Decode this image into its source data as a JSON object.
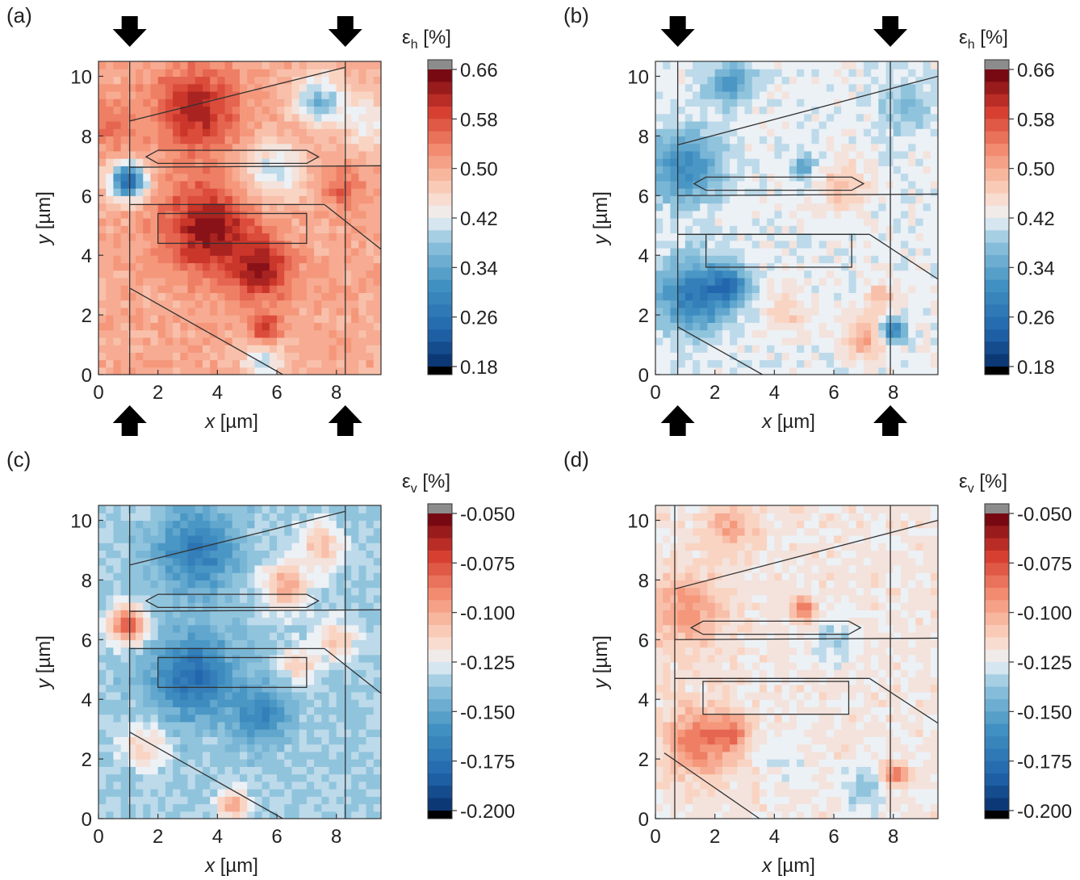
{
  "chart_data": [
    {
      "type": "heatmap",
      "panel_label": "(a)",
      "xlabel_var": "x",
      "xlabel_unit": "[µm]",
      "ylabel_var": "y",
      "ylabel_unit": "[µm]",
      "xlim": [
        0,
        9.5
      ],
      "ylim": [
        0,
        10.5
      ],
      "xticks": [
        "0",
        "2",
        "4",
        "6",
        "8"
      ],
      "yticks": [
        "0",
        "2",
        "4",
        "6",
        "8",
        "10"
      ],
      "colorbar_title_symbol": "ε",
      "colorbar_title_sub": "h",
      "colorbar_title_unit": "[%]",
      "colorbar_ticks": [
        "0.66",
        "0.58",
        "0.50",
        "0.42",
        "0.34",
        "0.26",
        "0.18"
      ],
      "colorbar_range": [
        0.18,
        0.66
      ],
      "arrows": true,
      "overall_mean": 0.5,
      "features": [
        {
          "x": 1.0,
          "y": 6.5,
          "value": 0.24,
          "radius": 0.6
        },
        {
          "x": 3.7,
          "y": 4.9,
          "value": 0.64,
          "radius": 1.5
        },
        {
          "x": 3.3,
          "y": 8.9,
          "value": 0.62,
          "radius": 1.4
        },
        {
          "x": 5.5,
          "y": 3.5,
          "value": 0.62,
          "radius": 1.0
        },
        {
          "x": 5.6,
          "y": 1.5,
          "value": 0.62,
          "radius": 0.5
        },
        {
          "x": 7.4,
          "y": 9.2,
          "value": 0.36,
          "radius": 0.8
        },
        {
          "x": 5.9,
          "y": 6.8,
          "value": 0.4,
          "radius": 1.0
        },
        {
          "x": 8.2,
          "y": 6.2,
          "value": 0.56,
          "radius": 0.7
        },
        {
          "x": 0.4,
          "y": 8.3,
          "value": 0.56,
          "radius": 0.8
        },
        {
          "x": 5.5,
          "y": 0.5,
          "value": 0.4,
          "radius": 0.7
        },
        {
          "x": 9.1,
          "y": 8.5,
          "value": 0.42,
          "radius": 0.9
        }
      ]
    },
    {
      "type": "heatmap",
      "panel_label": "(b)",
      "xlabel_var": "x",
      "xlabel_unit": "[µm]",
      "ylabel_var": "y",
      "ylabel_unit": "[µm]",
      "xlim": [
        0,
        9.5
      ],
      "ylim": [
        0,
        10.5
      ],
      "xticks": [
        "0",
        "2",
        "4",
        "6",
        "8"
      ],
      "yticks": [
        "0",
        "2",
        "4",
        "6",
        "8",
        "10"
      ],
      "colorbar_title_symbol": "ε",
      "colorbar_title_sub": "h",
      "colorbar_title_unit": "[%]",
      "colorbar_ticks": [
        "0.66",
        "0.58",
        "0.50",
        "0.42",
        "0.34",
        "0.26",
        "0.18"
      ],
      "colorbar_range": [
        0.18,
        0.66
      ],
      "arrows": true,
      "overall_mean": 0.42,
      "features": [
        {
          "x": 1.0,
          "y": 7.0,
          "value": 0.3,
          "radius": 1.2
        },
        {
          "x": 1.3,
          "y": 2.7,
          "value": 0.27,
          "radius": 1.2
        },
        {
          "x": 2.5,
          "y": 3.0,
          "value": 0.3,
          "radius": 0.6
        },
        {
          "x": 2.5,
          "y": 9.8,
          "value": 0.32,
          "radius": 0.7
        },
        {
          "x": 6.3,
          "y": 6.3,
          "value": 0.48,
          "radius": 0.8
        },
        {
          "x": 7.0,
          "y": 1.2,
          "value": 0.5,
          "radius": 0.7
        },
        {
          "x": 7.6,
          "y": 2.6,
          "value": 0.48,
          "radius": 0.5
        },
        {
          "x": 8.0,
          "y": 1.5,
          "value": 0.28,
          "radius": 0.4
        },
        {
          "x": 5.0,
          "y": 7.0,
          "value": 0.34,
          "radius": 0.4
        },
        {
          "x": 4.5,
          "y": 2.0,
          "value": 0.46,
          "radius": 0.8
        },
        {
          "x": 8.5,
          "y": 9.0,
          "value": 0.38,
          "radius": 1.0
        }
      ]
    },
    {
      "type": "heatmap",
      "panel_label": "(c)",
      "xlabel_var": "x",
      "xlabel_unit": "[µm]",
      "ylabel_var": "y",
      "ylabel_unit": "[µm]",
      "xlim": [
        0,
        9.5
      ],
      "ylim": [
        0,
        10.5
      ],
      "xticks": [
        "0",
        "2",
        "4",
        "6",
        "8"
      ],
      "yticks": [
        "0",
        "2",
        "4",
        "6",
        "8",
        "10"
      ],
      "colorbar_title_symbol": "ε",
      "colorbar_title_sub": "v",
      "colorbar_title_unit": "[%]",
      "colorbar_ticks": [
        "-0.050",
        "-0.075",
        "-0.100",
        "-0.125",
        "-0.150",
        "-0.175",
        "-0.200"
      ],
      "colorbar_range": [
        -0.2,
        -0.05
      ],
      "arrows": false,
      "overall_mean": -0.135,
      "features": [
        {
          "x": 1.0,
          "y": 6.5,
          "value": -0.075,
          "radius": 0.6
        },
        {
          "x": 3.2,
          "y": 4.8,
          "value": -0.175,
          "radius": 1.4
        },
        {
          "x": 3.3,
          "y": 9.0,
          "value": -0.17,
          "radius": 1.3
        },
        {
          "x": 5.5,
          "y": 3.5,
          "value": -0.165,
          "radius": 0.9
        },
        {
          "x": 6.3,
          "y": 7.8,
          "value": -0.1,
          "radius": 0.8
        },
        {
          "x": 7.5,
          "y": 9.2,
          "value": -0.105,
          "radius": 0.7
        },
        {
          "x": 8.0,
          "y": 6.0,
          "value": -0.105,
          "radius": 0.6
        },
        {
          "x": 4.5,
          "y": 0.5,
          "value": -0.1,
          "radius": 0.5
        },
        {
          "x": 1.5,
          "y": 2.5,
          "value": -0.11,
          "radius": 0.7
        },
        {
          "x": 6.8,
          "y": 5.2,
          "value": -0.11,
          "radius": 0.6
        }
      ]
    },
    {
      "type": "heatmap",
      "panel_label": "(d)",
      "xlabel_var": "x",
      "xlabel_unit": "[µm]",
      "ylabel_var": "y",
      "ylabel_unit": "[µm]",
      "xlim": [
        0,
        9.5
      ],
      "ylim": [
        0,
        10.5
      ],
      "xticks": [
        "0",
        "2",
        "4",
        "6",
        "8"
      ],
      "yticks": [
        "0",
        "2",
        "4",
        "6",
        "8",
        "10"
      ],
      "colorbar_title_symbol": "ε",
      "colorbar_title_sub": "v",
      "colorbar_title_unit": "[%]",
      "colorbar_ticks": [
        "-0.050",
        "-0.075",
        "-0.100",
        "-0.125",
        "-0.150",
        "-0.175",
        "-0.200"
      ],
      "colorbar_range": [
        -0.2,
        -0.05
      ],
      "arrows": false,
      "overall_mean": -0.12,
      "features": [
        {
          "x": 1.0,
          "y": 7.0,
          "value": -0.095,
          "radius": 1.2
        },
        {
          "x": 1.5,
          "y": 2.6,
          "value": -0.085,
          "radius": 1.1
        },
        {
          "x": 2.6,
          "y": 2.9,
          "value": -0.095,
          "radius": 0.6
        },
        {
          "x": 2.5,
          "y": 9.8,
          "value": -0.1,
          "radius": 0.8
        },
        {
          "x": 5.0,
          "y": 7.0,
          "value": -0.085,
          "radius": 0.4
        },
        {
          "x": 8.1,
          "y": 1.5,
          "value": -0.085,
          "radius": 0.4
        },
        {
          "x": 6.0,
          "y": 6.0,
          "value": -0.135,
          "radius": 0.8
        },
        {
          "x": 7.0,
          "y": 1.0,
          "value": -0.14,
          "radius": 0.7
        },
        {
          "x": 4.5,
          "y": 2.0,
          "value": -0.13,
          "radius": 0.8
        },
        {
          "x": 8.5,
          "y": 8.5,
          "value": -0.12,
          "radius": 1.0
        }
      ]
    }
  ]
}
